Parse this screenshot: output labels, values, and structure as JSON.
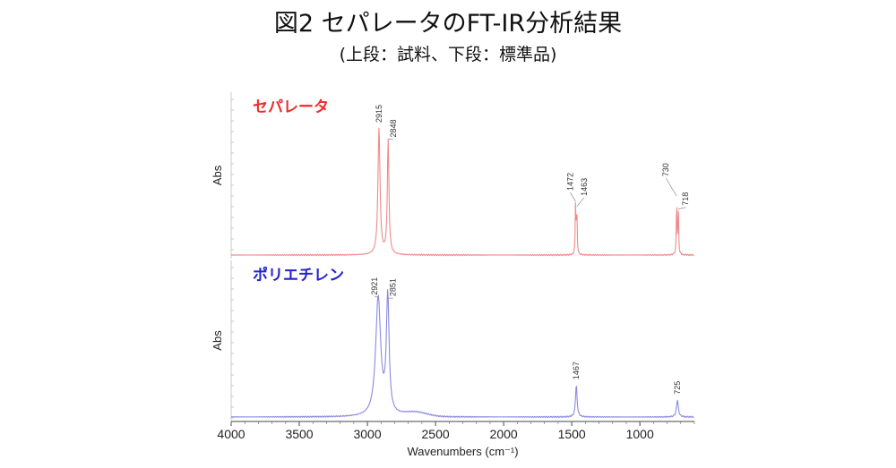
{
  "title": "図2 セパレータのFT-IR分析結果",
  "subtitle": "(上段：試料、下段：標準品)",
  "chart_data": [
    {
      "type": "line",
      "label": "セパレータ",
      "color": "#ee2b2b",
      "line_color": "#f08a8a",
      "ylabel": "Abs",
      "xlabel": "Wavenumbers (cm⁻¹)",
      "xlim": [
        4000,
        600
      ],
      "x_reversed": true,
      "ylim": [
        0,
        1.0
      ],
      "baseline": 0.02,
      "peaks": [
        {
          "x": 2915,
          "y": 1.0,
          "w": 9
        },
        {
          "x": 2848,
          "y": 0.9,
          "w": 7
        },
        {
          "x": 1472,
          "y": 0.42,
          "w": 3
        },
        {
          "x": 1463,
          "y": 0.38,
          "w": 3
        },
        {
          "x": 730,
          "y": 0.46,
          "w": 3
        },
        {
          "x": 718,
          "y": 0.36,
          "w": 3
        }
      ],
      "peak_labels": [
        "2915",
        "2848",
        "1472",
        "1463",
        "730",
        "718"
      ]
    },
    {
      "type": "line",
      "label": "ポリエチレン",
      "color": "#2323cc",
      "line_color": "#8a8ae0",
      "ylabel": "Abs",
      "xlabel": "Wavenumbers (cm⁻¹)",
      "xlim": [
        4000,
        600
      ],
      "x_reversed": true,
      "ylim": [
        0,
        1.0
      ],
      "baseline": 0.02,
      "peaks": [
        {
          "x": 2921,
          "y": 0.98,
          "w": 22
        },
        {
          "x": 2851,
          "y": 0.97,
          "w": 12
        },
        {
          "x": 1467,
          "y": 0.28,
          "w": 7
        },
        {
          "x": 725,
          "y": 0.16,
          "w": 8
        }
      ],
      "peak_labels": [
        "2921",
        "2851",
        "1467",
        "725"
      ]
    }
  ],
  "x_ticks": [
    "4000",
    "3500",
    "3000",
    "2500",
    "2000",
    "1500",
    "1000"
  ],
  "x_tick_values": [
    4000,
    3500,
    3000,
    2500,
    2000,
    1500,
    1000
  ]
}
